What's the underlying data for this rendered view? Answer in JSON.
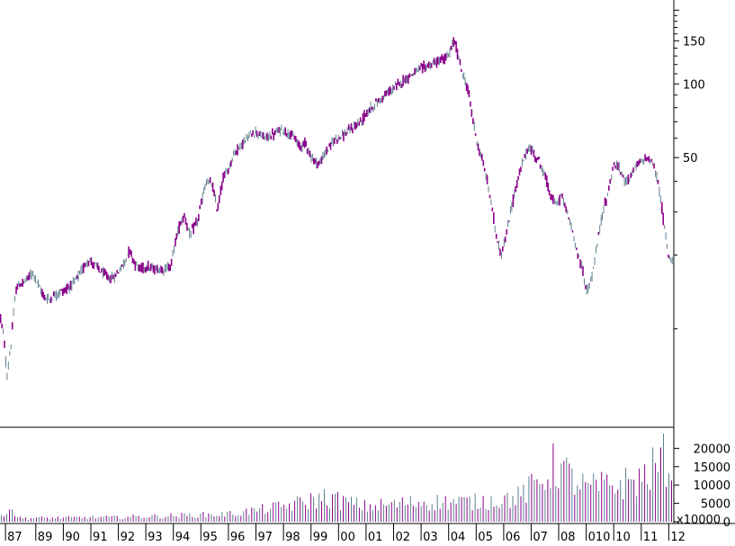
{
  "chart_data": [
    {
      "type": "candlestick",
      "scale": "log",
      "grid": false,
      "y_ticks": [
        50,
        100,
        150
      ],
      "y_tick_labels": [
        "50",
        "100",
        "150"
      ],
      "ylim": [
        4,
        220
      ],
      "x_tick_labels": [
        "87",
        "89",
        "90",
        "91",
        "92",
        "93",
        "94",
        "95",
        "96",
        "97",
        "98",
        "99",
        "00",
        "01",
        "02",
        "03",
        "04",
        "05",
        "06",
        "07",
        "08",
        "010",
        "10",
        "11",
        "12"
      ],
      "x_tick_years": [
        1987.9,
        1989,
        1990,
        1991,
        1992,
        1993,
        1994,
        1995,
        1996,
        1997,
        1998,
        1999,
        2000,
        2001,
        2002,
        2003,
        2004,
        2005,
        2006,
        2007,
        2008,
        2009,
        2010,
        2011,
        2012
      ],
      "xlim": [
        1987.7,
        2012.15
      ],
      "colors": {
        "up": "#5f7f8f",
        "down": "#8b008b"
      },
      "price_path": [
        [
          1987.7,
          11.5
        ],
        [
          1987.85,
          9.0
        ],
        [
          1987.95,
          6.3
        ],
        [
          1988.1,
          8.6
        ],
        [
          1988.3,
          14.8
        ],
        [
          1988.6,
          15.6
        ],
        [
          1988.9,
          17.0
        ],
        [
          1989.1,
          15.0
        ],
        [
          1989.3,
          13.5
        ],
        [
          1989.5,
          13.2
        ],
        [
          1989.8,
          14.0
        ],
        [
          1990.1,
          14.5
        ],
        [
          1990.4,
          15.5
        ],
        [
          1990.7,
          17.5
        ],
        [
          1990.9,
          19.2
        ],
        [
          1991.2,
          18.0
        ],
        [
          1991.4,
          17.0
        ],
        [
          1991.7,
          16.0
        ],
        [
          1991.9,
          16.5
        ],
        [
          1992.2,
          18.5
        ],
        [
          1992.4,
          21.0
        ],
        [
          1992.6,
          18.5
        ],
        [
          1992.8,
          17.5
        ],
        [
          1993.0,
          18.0
        ],
        [
          1993.3,
          17.5
        ],
        [
          1993.6,
          17.5
        ],
        [
          1993.9,
          18.0
        ],
        [
          1994.2,
          26.0
        ],
        [
          1994.4,
          29.0
        ],
        [
          1994.6,
          24.0
        ],
        [
          1994.9,
          28.0
        ],
        [
          1995.2,
          40.0
        ],
        [
          1995.4,
          39.0
        ],
        [
          1995.6,
          30.0
        ],
        [
          1995.8,
          41.0
        ],
        [
          1996.0,
          45.0
        ],
        [
          1996.2,
          52.0
        ],
        [
          1996.5,
          57.0
        ],
        [
          1996.8,
          62.0
        ],
        [
          1997.0,
          64.0
        ],
        [
          1997.3,
          60.0
        ],
        [
          1997.6,
          62.0
        ],
        [
          1997.9,
          65.0
        ],
        [
          1998.2,
          63.0
        ],
        [
          1998.4,
          60.0
        ],
        [
          1998.6,
          55.0
        ],
        [
          1998.8,
          58.0
        ],
        [
          1999.0,
          50.0
        ],
        [
          1999.3,
          47.0
        ],
        [
          1999.6,
          54.0
        ],
        [
          1999.9,
          60.0
        ],
        [
          2000.2,
          62.0
        ],
        [
          2000.5,
          66.0
        ],
        [
          2000.8,
          70.0
        ],
        [
          2001.1,
          78.0
        ],
        [
          2001.4,
          84.0
        ],
        [
          2001.7,
          90.0
        ],
        [
          2002.0,
          96.0
        ],
        [
          2002.3,
          102.0
        ],
        [
          2002.6,
          108.0
        ],
        [
          2002.9,
          114.0
        ],
        [
          2003.2,
          118.0
        ],
        [
          2003.5,
          122.0
        ],
        [
          2003.8,
          126.0
        ],
        [
          2004.0,
          130.0
        ],
        [
          2004.2,
          150.0
        ],
        [
          2004.35,
          130.0
        ],
        [
          2004.5,
          110.0
        ],
        [
          2004.7,
          95.0
        ],
        [
          2004.85,
          75.0
        ],
        [
          2005.0,
          60.0
        ],
        [
          2005.15,
          52.0
        ],
        [
          2005.3,
          45.0
        ],
        [
          2005.5,
          35.0
        ],
        [
          2005.7,
          25.0
        ],
        [
          2005.9,
          20.0
        ],
        [
          2006.1,
          24.0
        ],
        [
          2006.3,
          32.0
        ],
        [
          2006.5,
          40.0
        ],
        [
          2006.7,
          48.0
        ],
        [
          2006.9,
          55.0
        ],
        [
          2007.1,
          52.0
        ],
        [
          2007.3,
          48.0
        ],
        [
          2007.5,
          42.0
        ],
        [
          2007.7,
          35.0
        ],
        [
          2007.9,
          32.0
        ],
        [
          2008.1,
          35.0
        ],
        [
          2008.3,
          30.0
        ],
        [
          2008.5,
          25.0
        ],
        [
          2008.7,
          20.0
        ],
        [
          2008.9,
          17.0
        ],
        [
          2009.0,
          14.0
        ],
        [
          2009.2,
          16.0
        ],
        [
          2009.4,
          22.0
        ],
        [
          2009.6,
          30.0
        ],
        [
          2009.8,
          36.0
        ],
        [
          2010.0,
          47.0
        ],
        [
          2010.2,
          45.0
        ],
        [
          2010.4,
          40.0
        ],
        [
          2010.6,
          42.0
        ],
        [
          2010.8,
          46.0
        ],
        [
          2011.0,
          48.0
        ],
        [
          2011.2,
          50.0
        ],
        [
          2011.4,
          48.0
        ],
        [
          2011.6,
          40.0
        ],
        [
          2011.8,
          28.0
        ],
        [
          2011.95,
          21.0
        ],
        [
          2012.05,
          19.0
        ],
        [
          2012.15,
          19.5
        ]
      ],
      "volume_path": [
        [
          1987.7,
          1500
        ],
        [
          1988.0,
          5000
        ],
        [
          1988.4,
          1200
        ],
        [
          1990.0,
          1300
        ],
        [
          1992.0,
          1500
        ],
        [
          1994.0,
          2000
        ],
        [
          1996.0,
          2500
        ],
        [
          1998.0,
          5000
        ],
        [
          1999.5,
          8000
        ],
        [
          2001.0,
          5000
        ],
        [
          2003.0,
          6500
        ],
        [
          2005.0,
          6500
        ],
        [
          2006.5,
          8000
        ],
        [
          2007.3,
          13000
        ],
        [
          2007.9,
          19000
        ],
        [
          2008.5,
          14000
        ],
        [
          2009.0,
          11000
        ],
        [
          2010.0,
          12000
        ],
        [
          2011.0,
          14000
        ],
        [
          2011.9,
          21000
        ],
        [
          2012.15,
          17000
        ]
      ]
    },
    {
      "type": "bar",
      "unit_label": "x10000",
      "y_ticks": [
        0,
        5000,
        10000,
        15000,
        20000
      ],
      "y_tick_labels": [
        "0",
        "5000",
        "10000",
        "15000",
        "20000"
      ],
      "ylim": [
        0,
        25000
      ],
      "colors": {
        "bar": "#8b008b",
        "bar_alt": "#5f7f8f"
      }
    }
  ]
}
